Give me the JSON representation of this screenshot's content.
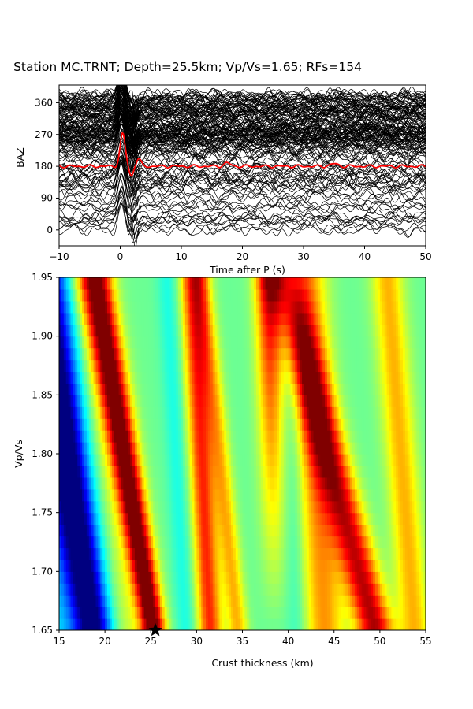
{
  "title": "Station MC.TRNT; Depth=25.5km; Vp/Vs=1.65; RFs=154",
  "chart_data": [
    {
      "type": "line",
      "xlabel": "Time after P (s)",
      "ylabel": "BAZ",
      "xlim": [
        -10,
        50
      ],
      "ylim": [
        -45,
        410
      ],
      "xticks": [
        "−10",
        "0",
        "10",
        "20",
        "30",
        "40",
        "50"
      ],
      "yticks": [
        "0",
        "90",
        "180",
        "270",
        "360"
      ],
      "traces": 154,
      "series": [
        {
          "name": "",
          "color": "#000000",
          "description_values": "receiver functions stacked at back azimuth"
        },
        {
          "name": "",
          "color": "#ff0000",
          "baseline": 180
        }
      ]
    },
    {
      "type": "heatmap",
      "xlabel": "Crust thickness (km)",
      "ylabel": "Vp/Vs",
      "xlim": [
        15,
        55
      ],
      "ylim": [
        1.65,
        1.95
      ],
      "xticks": [
        "15",
        "20",
        "25",
        "30",
        "35",
        "40",
        "45",
        "50",
        "55"
      ],
      "yticks": [
        "1.65",
        "1.70",
        "1.75",
        "1.80",
        "1.85",
        "1.90",
        "1.95"
      ],
      "colormap": "jet",
      "best": {
        "H": 25.5,
        "k": 1.65
      }
    }
  ]
}
